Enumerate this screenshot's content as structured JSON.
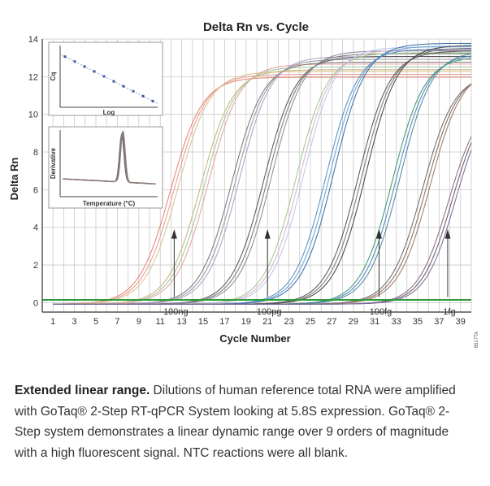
{
  "chart_data": {
    "type": "line",
    "title": "Delta Rn vs. Cycle",
    "xlabel": "Cycle Number",
    "ylabel": "Delta Rn",
    "xlim": [
      0,
      40
    ],
    "ylim": [
      -0.5,
      14
    ],
    "x_ticks": [
      1,
      3,
      5,
      7,
      9,
      11,
      13,
      15,
      17,
      19,
      21,
      23,
      25,
      27,
      29,
      31,
      33,
      35,
      37,
      39
    ],
    "y_ticks": [
      0,
      2,
      4,
      6,
      8,
      10,
      12,
      14
    ],
    "grid": true,
    "threshold": 0.15,
    "curve_groups": [
      {
        "midpoint": 12.3,
        "plateau": 12.2,
        "slope": 2.4,
        "colors": [
          "#e8836a",
          "#e89a9a",
          "#d9c38a"
        ]
      },
      {
        "midpoint": 15.1,
        "plateau": 12.6,
        "slope": 2.4,
        "colors": [
          "#c8b27a",
          "#9fc79f",
          "#e8a0a0"
        ]
      },
      {
        "midpoint": 18.0,
        "plateau": 13.0,
        "slope": 2.4,
        "colors": [
          "#777777",
          "#999999",
          "#b0a0c8"
        ]
      },
      {
        "midpoint": 21.0,
        "plateau": 13.3,
        "slope": 2.4,
        "colors": [
          "#555555",
          "#777777",
          "#8a8aa0"
        ]
      },
      {
        "midpoint": 24.0,
        "plateau": 13.5,
        "slope": 2.4,
        "colors": [
          "#9acb8a",
          "#e0b0d0",
          "#b8c8e8"
        ]
      },
      {
        "midpoint": 26.8,
        "plateau": 13.7,
        "slope": 2.4,
        "colors": [
          "#5a8fc0",
          "#6aa0d0",
          "#3a70a8"
        ]
      },
      {
        "midpoint": 29.8,
        "plateau": 13.6,
        "slope": 2.4,
        "colors": [
          "#555555",
          "#777777",
          "#444444"
        ]
      },
      {
        "midpoint": 33.0,
        "plateau": 13.3,
        "slope": 2.4,
        "colors": [
          "#3a9a6a",
          "#5a7fc0",
          "#4a8a9a"
        ]
      },
      {
        "midpoint": 35.8,
        "plateau": 12.4,
        "slope": 2.4,
        "colors": [
          "#6a6a6a",
          "#8a6a5a",
          "#9a7a6a"
        ]
      },
      {
        "midpoint": 38.2,
        "plateau": 11.0,
        "slope": 2.3,
        "colors": [
          "#8a6a8a",
          "#6a5a5a",
          "#7a6aa0"
        ]
      }
    ],
    "annotations": [
      {
        "label": "100ng",
        "x": 12.3
      },
      {
        "label": "100pg",
        "x": 21.0
      },
      {
        "label": "100fg",
        "x": 31.4
      },
      {
        "label": "1fg",
        "x": 37.8
      }
    ],
    "insets": [
      {
        "type": "scatter",
        "xlabel": "Log",
        "ylabel": "Cq",
        "points": [
          [
            0.5,
            8.2
          ],
          [
            1.5,
            7.4
          ],
          [
            2.5,
            6.6
          ],
          [
            3.5,
            5.8
          ],
          [
            4.5,
            5.0
          ],
          [
            5.5,
            4.2
          ],
          [
            6.5,
            3.4
          ],
          [
            7.5,
            2.6
          ],
          [
            8.5,
            1.8
          ],
          [
            9.5,
            1.0
          ]
        ],
        "xlim": [
          0,
          10
        ],
        "ylim": [
          0,
          10
        ]
      },
      {
        "type": "line",
        "xlabel": "Temperature (°C)",
        "ylabel": "Derivative",
        "xlim": [
          0,
          10
        ],
        "ylim": [
          0,
          10
        ],
        "peak_x": 6.3
      }
    ],
    "side_code": "8517TA"
  },
  "caption": {
    "bold": "Extended linear range.",
    "text": " Dilutions of human reference total RNA were amplified with GoTaq® 2-Step RT-qPCR System looking at 5.8S expression. GoTaq® 2-Step system demonstrates a linear dynamic range over 9 orders of magnitude with a high fluorescent signal. NTC reactions were all blank."
  }
}
